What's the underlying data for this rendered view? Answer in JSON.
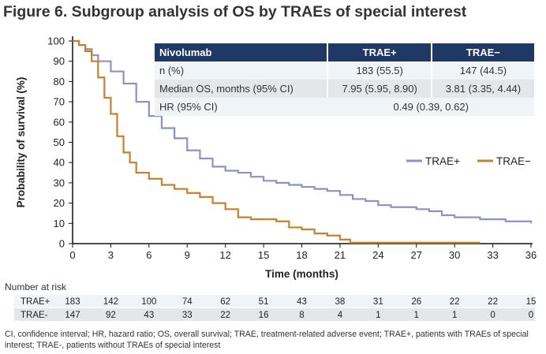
{
  "title": "Figure 6. Subgroup analysis of OS by TRAEs of special interest",
  "stats_table": {
    "headers": [
      "Nivolumab",
      "TRAE+",
      "TRAE−"
    ],
    "rows": [
      {
        "label": "n (%)",
        "trae_pos": "183 (55.5)",
        "trae_neg": "147 (44.5)"
      },
      {
        "label": "Median OS, months (95% CI)",
        "trae_pos": "7.95 (5.95, 8.90)",
        "trae_neg": "3.81 (3.35, 4.44)"
      },
      {
        "label": "HR (95% CI)",
        "combined": "0.49 (0.39, 0.62)"
      }
    ]
  },
  "chart_data": {
    "type": "line",
    "subtype": "kaplan-meier step",
    "xlabel": "Time (months)",
    "ylabel": "Probability of survival (%)",
    "xlim": [
      0,
      36
    ],
    "ylim": [
      0,
      100
    ],
    "xticks": [
      0,
      3,
      6,
      9,
      12,
      15,
      18,
      21,
      24,
      27,
      30,
      33,
      36
    ],
    "yticks": [
      0,
      10,
      20,
      30,
      40,
      50,
      60,
      70,
      80,
      90,
      100
    ],
    "grid": false,
    "legend_position": "right",
    "series": [
      {
        "name": "TRAE+",
        "color": "#8a92c6",
        "x": [
          0,
          0.5,
          1,
          1.5,
          2,
          3,
          4,
          5,
          6,
          7,
          8,
          9,
          10,
          11,
          12,
          13,
          14,
          15,
          16,
          17,
          18,
          19,
          20,
          21,
          22,
          23,
          24,
          25,
          26,
          27,
          28,
          29,
          30,
          31,
          32,
          33,
          34,
          35,
          36
        ],
        "y": [
          100,
          98,
          96,
          93,
          90,
          85,
          79,
          70,
          63,
          57,
          52,
          46,
          42,
          38,
          36,
          35,
          33,
          31,
          30,
          29,
          28,
          27,
          26,
          24,
          22,
          21,
          19,
          18,
          18,
          17,
          16,
          14,
          13,
          13,
          12,
          12,
          11,
          11,
          10
        ]
      },
      {
        "name": "TRAE−",
        "color": "#c8802c",
        "x": [
          0,
          0.5,
          1,
          1.5,
          2,
          2.5,
          3,
          3.5,
          4,
          4.5,
          5,
          6,
          7,
          8,
          9,
          10,
          11,
          12,
          13,
          14,
          15,
          16,
          17,
          18,
          19,
          20,
          21,
          21.8,
          32
        ],
        "y": [
          100,
          98,
          95,
          90,
          82,
          72,
          64,
          53,
          45,
          40,
          35,
          32,
          29,
          27,
          25,
          23,
          20,
          17,
          13,
          12,
          12,
          11,
          8,
          7,
          5,
          4,
          2,
          0.5,
          0.5
        ]
      }
    ]
  },
  "risk_table": {
    "title": "Number at risk",
    "rows": [
      {
        "label": "TRAE+",
        "values": [
          183,
          142,
          100,
          74,
          62,
          51,
          43,
          38,
          31,
          26,
          22,
          22,
          15
        ]
      },
      {
        "label": "TRAE-",
        "values": [
          147,
          92,
          43,
          33,
          22,
          16,
          8,
          4,
          1,
          1,
          1,
          0,
          0
        ]
      }
    ]
  },
  "footnote": "CI, confidence interval; HR, hazard ratio; OS, overall survival; TRAE, treatment-related adverse event; TRAE+, patients with TRAEs of special interest; TRAE-, patients without TRAEs of special interest",
  "colors": {
    "header": "#1f3864",
    "row_light": "#eef4f8",
    "row_grey": "#e3e7ea"
  }
}
